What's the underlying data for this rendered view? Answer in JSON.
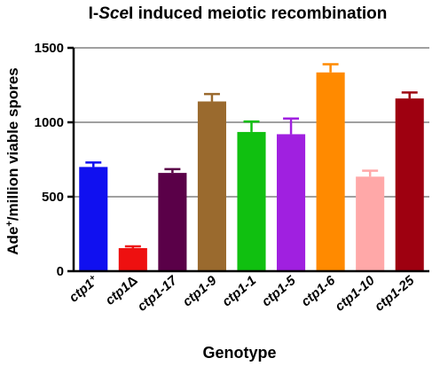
{
  "chart_data": {
    "type": "bar",
    "title_parts": [
      "I-",
      "Sce",
      "I induced meiotic recombination"
    ],
    "ylabel_parts": [
      "Ade",
      "+",
      "/million viable spores"
    ],
    "xlabel": "Genotype",
    "ylim": [
      0,
      1500
    ],
    "yticks": [
      0,
      500,
      1000,
      1500
    ],
    "grid": "horizontal",
    "legend": "none",
    "categories": [
      {
        "base": "ctp1",
        "sup": "+"
      },
      {
        "base": "ctp1",
        "sym": "Δ"
      },
      {
        "base": "ctp1-17"
      },
      {
        "base": "ctp1-9"
      },
      {
        "base": "ctp1-1"
      },
      {
        "base": "ctp1-5"
      },
      {
        "base": "ctp1-6"
      },
      {
        "base": "ctp1-10"
      },
      {
        "base": "ctp1-25"
      }
    ],
    "values": [
      700,
      155,
      660,
      1140,
      935,
      920,
      1335,
      635,
      1160
    ],
    "errors": [
      30,
      12,
      25,
      50,
      70,
      105,
      55,
      40,
      40
    ],
    "colors": [
      "#1010f0",
      "#ee1010",
      "#5a0048",
      "#9a6a2e",
      "#10c010",
      "#a020e0",
      "#ff8a00",
      "#ffa8a8",
      "#9e0010"
    ]
  }
}
